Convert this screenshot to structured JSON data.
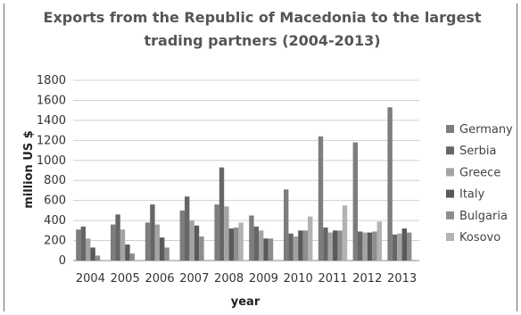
{
  "chart_data": {
    "type": "bar",
    "title_lines": [
      "Exports from the Republic of Macedonia to the largest",
      "trading partners (2004-2013)"
    ],
    "xlabel": "year",
    "ylabel": "million US $",
    "ylim": [
      0,
      1800
    ],
    "yticks": [
      0,
      200,
      400,
      600,
      800,
      1000,
      1200,
      1400,
      1600,
      1800
    ],
    "categories": [
      "2004",
      "2005",
      "2006",
      "2007",
      "2008",
      "2009",
      "2010",
      "2011",
      "2012",
      "2013"
    ],
    "legend_position": "right",
    "grid": "horizontal",
    "series": [
      {
        "name": "Germany",
        "color": "#7d7d7d",
        "values": [
          310,
          360,
          380,
          500,
          560,
          450,
          710,
          1240,
          1180,
          1530
        ]
      },
      {
        "name": "Serbia",
        "color": "#666666",
        "values": [
          340,
          460,
          560,
          640,
          930,
          340,
          270,
          330,
          290,
          260
        ]
      },
      {
        "name": "Greece",
        "color": "#a3a3a3",
        "values": [
          220,
          310,
          360,
          400,
          540,
          300,
          240,
          280,
          280,
          270
        ]
      },
      {
        "name": "Italy",
        "color": "#5a5a5a",
        "values": [
          130,
          160,
          230,
          350,
          320,
          220,
          300,
          300,
          280,
          320
        ]
      },
      {
        "name": "Bulgaria",
        "color": "#8e8e8e",
        "values": [
          50,
          70,
          130,
          240,
          330,
          220,
          300,
          300,
          290,
          280
        ]
      },
      {
        "name": "Kosovo",
        "color": "#b3b3b3",
        "values": [
          0,
          0,
          0,
          0,
          380,
          0,
          440,
          550,
          390,
          0
        ]
      }
    ]
  }
}
